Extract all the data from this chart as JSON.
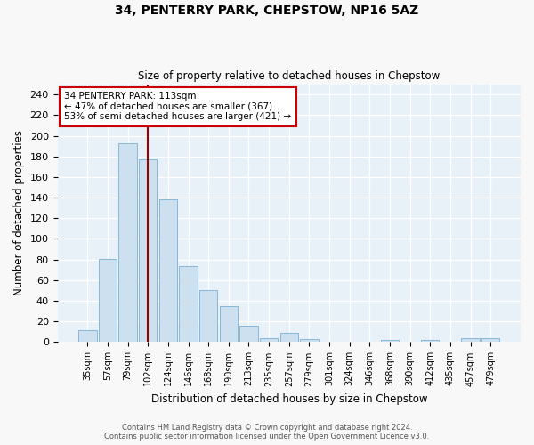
{
  "title": "34, PENTERRY PARK, CHEPSTOW, NP16 5AZ",
  "subtitle": "Size of property relative to detached houses in Chepstow",
  "xlabel": "Distribution of detached houses by size in Chepstow",
  "ylabel": "Number of detached properties",
  "bar_color": "#cce0f0",
  "bar_edge_color": "#7ab0d4",
  "background_color": "#e8f0f8",
  "grid_color": "#ffffff",
  "categories": [
    "35sqm",
    "57sqm",
    "79sqm",
    "102sqm",
    "124sqm",
    "146sqm",
    "168sqm",
    "190sqm",
    "213sqm",
    "235sqm",
    "257sqm",
    "279sqm",
    "301sqm",
    "324sqm",
    "346sqm",
    "368sqm",
    "390sqm",
    "412sqm",
    "435sqm",
    "457sqm",
    "479sqm"
  ],
  "values": [
    12,
    81,
    193,
    177,
    138,
    74,
    50,
    35,
    16,
    4,
    9,
    3,
    0,
    0,
    0,
    2,
    0,
    2,
    0,
    4,
    4
  ],
  "ylim": [
    0,
    250
  ],
  "yticks": [
    0,
    20,
    40,
    60,
    80,
    100,
    120,
    140,
    160,
    180,
    200,
    220,
    240
  ],
  "property_line_color": "#990000",
  "annotation_line1": "34 PENTERRY PARK: 113sqm",
  "annotation_line2": "← 47% of detached houses are smaller (367)",
  "annotation_line3": "53% of semi-detached houses are larger (421) →",
  "annotation_box_color": "#ffffff",
  "annotation_box_edge_color": "#cc0000",
  "footer_line1": "Contains HM Land Registry data © Crown copyright and database right 2024.",
  "footer_line2": "Contains public sector information licensed under the Open Government Licence v3.0.",
  "fig_bg": "#f8f8f8"
}
